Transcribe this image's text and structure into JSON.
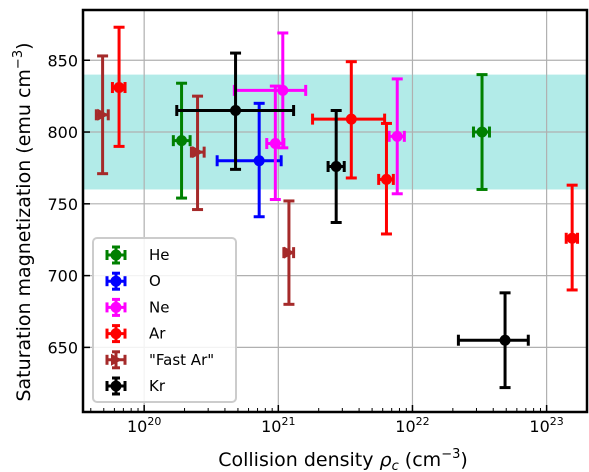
{
  "chart_data": {
    "type": "scatter",
    "xlabel": "Collision density",
    "xlabel_symbol": "ρ",
    "xlabel_sub": "c",
    "xlabel_unit_open": " (cm",
    "xlabel_unit_exp": "−3",
    "xlabel_unit_close": ")",
    "ylabel": "Saturation magnetization (emu cm",
    "ylabel_exp": "−3",
    "ylabel_close": ")",
    "x_scale": "log",
    "xlim": [
      3.5e+19,
      2e+23
    ],
    "ylim": [
      605,
      885
    ],
    "x_ticks": [
      {
        "base": "10",
        "exp": "20",
        "value": 1e+20
      },
      {
        "base": "10",
        "exp": "21",
        "value": 1e+21
      },
      {
        "base": "10",
        "exp": "22",
        "value": 1e+22
      },
      {
        "base": "10",
        "exp": "23",
        "value": 1e+23
      }
    ],
    "y_ticks": [
      {
        "label": "650",
        "value": 650
      },
      {
        "label": "700",
        "value": 700
      },
      {
        "label": "750",
        "value": 750
      },
      {
        "label": "800",
        "value": 800
      },
      {
        "label": "850",
        "value": 850
      }
    ],
    "grid": true,
    "band": {
      "y_min": 760,
      "y_max": 840,
      "color": "#b2ebe8"
    },
    "legend": {
      "position": "lower-left"
    },
    "series": [
      {
        "name": "He",
        "color": "#008000",
        "marker": "circle",
        "points": [
          {
            "x": 1.9e+20,
            "y": 794,
            "xmin": 1.65e+20,
            "xmax": 2.2e+20,
            "ylow": 754,
            "yhigh": 834
          },
          {
            "x": 3.3e+22,
            "y": 800,
            "xmin": 2.85e+22,
            "xmax": 3.75e+22,
            "ylow": 760,
            "yhigh": 840
          }
        ]
      },
      {
        "name": "O",
        "color": "#0000ff",
        "marker": "circle",
        "points": [
          {
            "x": 7.2e+20,
            "y": 780,
            "xmin": 3.5e+20,
            "xmax": 1.05e+21,
            "ylow": 741,
            "yhigh": 820
          }
        ]
      },
      {
        "name": "Ne",
        "color": "#ff00ff",
        "marker": "circle",
        "points": [
          {
            "x": 9.5e+20,
            "y": 792,
            "xmin": 8.2e+20,
            "xmax": 1.1e+21,
            "ylow": 753,
            "yhigh": 832
          },
          {
            "x": 1.08e+21,
            "y": 829,
            "xmin": 4.7e+20,
            "xmax": 1.6e+21,
            "ylow": 789,
            "yhigh": 869
          },
          {
            "x": 7.7e+21,
            "y": 797,
            "xmin": 6.7e+21,
            "xmax": 8.7e+21,
            "ylow": 757,
            "yhigh": 837
          }
        ]
      },
      {
        "name": "Ar",
        "color": "#ff0000",
        "marker": "circle",
        "points": [
          {
            "x": 6.5e+19,
            "y": 831,
            "xmin": 5.8e+19,
            "xmax": 7.2e+19,
            "ylow": 790,
            "yhigh": 873
          },
          {
            "x": 3.5e+21,
            "y": 809,
            "xmin": 1.8e+21,
            "xmax": 6.2e+21,
            "ylow": 768,
            "yhigh": 849
          },
          {
            "x": 6.4e+21,
            "y": 767,
            "xmin": 5.6e+21,
            "xmax": 7.2e+21,
            "ylow": 729,
            "yhigh": 806
          },
          {
            "x": 1.55e+23,
            "y": 726,
            "xmin": 1.4e+23,
            "xmax": 1.7e+23,
            "ylow": 690,
            "yhigh": 763
          }
        ]
      },
      {
        "name": "\"Fast Ar\"",
        "color": "#a52a2a",
        "marker": "triangle-right",
        "points": [
          {
            "x": 4.9e+19,
            "y": 812,
            "xmin": 4.4e+19,
            "xmax": 5.4e+19,
            "ylow": 771,
            "yhigh": 853
          },
          {
            "x": 2.5e+20,
            "y": 786,
            "xmin": 2.25e+20,
            "xmax": 2.8e+20,
            "ylow": 746,
            "yhigh": 825
          },
          {
            "x": 1.2e+21,
            "y": 716,
            "xmin": 1.1e+21,
            "xmax": 1.3e+21,
            "ylow": 680,
            "yhigh": 752
          }
        ]
      },
      {
        "name": "Kr",
        "color": "#000000",
        "marker": "circle",
        "points": [
          {
            "x": 4.8e+20,
            "y": 815,
            "xmin": 1.75e+20,
            "xmax": 1.3e+21,
            "ylow": 774,
            "yhigh": 855
          },
          {
            "x": 2.7e+21,
            "y": 776,
            "xmin": 2.35e+21,
            "xmax": 3.1e+21,
            "ylow": 737,
            "yhigh": 815
          },
          {
            "x": 4.9e+22,
            "y": 655,
            "xmin": 2.2e+22,
            "xmax": 7.3e+22,
            "ylow": 622,
            "yhigh": 688
          }
        ]
      }
    ]
  }
}
